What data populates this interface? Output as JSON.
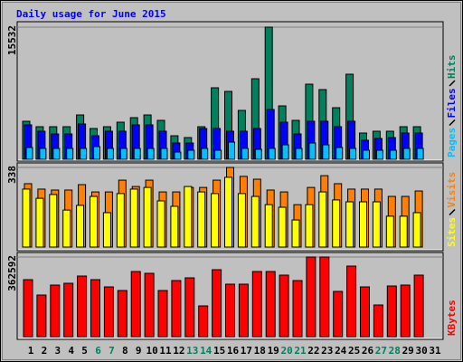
{
  "chart_data": {
    "type": "bar",
    "title": "Daily usage for June 2015",
    "title_color": "#0000ff",
    "categories": [
      "1",
      "2",
      "3",
      "4",
      "5",
      "6",
      "7",
      "8",
      "9",
      "10",
      "11",
      "12",
      "13",
      "14",
      "15",
      "16",
      "17",
      "18",
      "19",
      "20",
      "21",
      "22",
      "23",
      "24",
      "25",
      "26",
      "27",
      "28",
      "29",
      "30",
      "31"
    ],
    "category_colors": [
      "#000000",
      "#000000",
      "#000000",
      "#000000",
      "#000000",
      "#00805c",
      "#00805c",
      "#000000",
      "#000000",
      "#000000",
      "#000000",
      "#000000",
      "#00805c",
      "#00805c",
      "#000000",
      "#000000",
      "#000000",
      "#000000",
      "#000000",
      "#00805c",
      "#00805c",
      "#000000",
      "#000000",
      "#000000",
      "#000000",
      "#000000",
      "#00805c",
      "#00805c",
      "#000000",
      "#000000",
      "#000000"
    ],
    "panels": [
      {
        "ylim": [
          0,
          15532
        ],
        "yticks": [
          15532
        ],
        "series": [
          {
            "name": "Hits",
            "color": "#00805c",
            "values": [
              4468,
              3830,
              3830,
              3830,
              5213,
              3617,
              3830,
              4362,
              4894,
              5213,
              4575,
              2766,
              2553,
              3830,
              8404,
              7979,
              5745,
              9468,
              15532,
              6277,
              4575,
              8830,
              8192,
              6064,
              10000,
              3085,
              3298,
              3298,
              3830,
              3830,
              0
            ]
          },
          {
            "name": "Files",
            "color": "#0000ff",
            "values": [
              4043,
              3298,
              2979,
              2979,
              4150,
              2766,
              3298,
              3298,
              4043,
              4043,
              3298,
              1915,
              1915,
              3618,
              3618,
              3298,
              3298,
              3618,
              5852,
              4362,
              2979,
              4469,
              4469,
              3830,
              4469,
              2234,
              2447,
              2554,
              3086,
              3086,
              0
            ]
          },
          {
            "name": "Pages",
            "color": "#00c0ff",
            "values": [
              1383,
              1277,
              1277,
              1277,
              1277,
              1490,
              1277,
              1277,
              1277,
              1277,
              1277,
              851,
              1064,
              1277,
              1064,
              2021,
              1277,
              1170,
              1277,
              1702,
              1277,
              1915,
              1702,
              1383,
              1277,
              1064,
              1064,
              1064,
              1277,
              1277,
              0
            ]
          }
        ]
      },
      {
        "ylim": [
          0,
          338
        ],
        "yticks": [
          338
        ],
        "series": [
          {
            "name": "Visits",
            "color": "#ff8000",
            "values": [
              269,
              246,
              242,
              242,
              265,
              234,
              234,
              284,
              257,
              284,
              234,
              234,
              253,
              253,
              284,
              338,
              300,
              288,
              242,
              234,
              180,
              253,
              303,
              269,
              246,
              246,
              246,
              215,
              215,
              238,
              0
            ]
          },
          {
            "name": "Sites",
            "color": "#ffff00",
            "values": [
              246,
              207,
              223,
              157,
              177,
              215,
              146,
              227,
              246,
              253,
              196,
              173,
              257,
              234,
              227,
              296,
              227,
              215,
              180,
              169,
              115,
              180,
              234,
              200,
              192,
              192,
              192,
              131,
              131,
              146,
              0
            ]
          }
        ]
      },
      {
        "ylim": [
          0,
          362592
        ],
        "yticks": [
          362592
        ],
        "series": [
          {
            "name": "KBytes",
            "color": "#ff0000",
            "values": [
              259560,
              189520,
              234840,
              243080,
              276040,
              259560,
              226600,
              210120,
              296640,
              288400,
              210120,
              255440,
              267800,
              140080,
              304880,
              238960,
              238960,
              296640,
              296640,
              280160,
              255440,
              362592,
              362592,
              206000,
              321360,
              226600,
              144200,
              230720,
              234840,
              280160,
              0
            ]
          }
        ]
      }
    ]
  }
}
